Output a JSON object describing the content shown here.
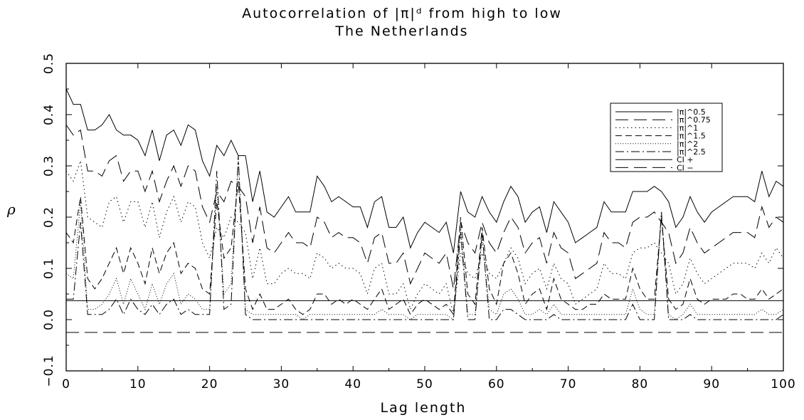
{
  "chart_data": {
    "type": "line",
    "title_line1": "Autocorrelation of |π|ᵈ from high to low",
    "title_line2": "The Netherlands",
    "xlabel": "Lag length",
    "ylabel": "ρ",
    "xlim": [
      0,
      100
    ],
    "ylim": [
      -0.1,
      0.5
    ],
    "x_ticks": [
      "0",
      "10",
      "20",
      "30",
      "40",
      "50",
      "60",
      "70",
      "80",
      "90",
      "100"
    ],
    "y_ticks": [
      "−0.1",
      "0.0",
      "0.1",
      "0.2",
      "0.3",
      "0.4",
      "0.5"
    ],
    "legend_position": "top-right",
    "grid": false,
    "series": [
      {
        "name": "|π|^0.5",
        "dash": "solid",
        "x": [
          0,
          1,
          2,
          3,
          4,
          5,
          6,
          7,
          8,
          9,
          10,
          11,
          12,
          13,
          14,
          15,
          16,
          17,
          18,
          19,
          20,
          21,
          22,
          23,
          24,
          25,
          26,
          27,
          28,
          29,
          30,
          31,
          32,
          33,
          34,
          35,
          36,
          37,
          38,
          39,
          40,
          41,
          42,
          43,
          44,
          45,
          46,
          47,
          48,
          49,
          50,
          51,
          52,
          53,
          54,
          55,
          56,
          57,
          58,
          59,
          60,
          61,
          62,
          63,
          64,
          65,
          66,
          67,
          68,
          69,
          70,
          71,
          72,
          73,
          74,
          75,
          76,
          77,
          78,
          79,
          80,
          81,
          82,
          83,
          84,
          85,
          86,
          87,
          88,
          89,
          90,
          91,
          92,
          93,
          94,
          95,
          96,
          97,
          98,
          99,
          100
        ],
        "y": [
          0.45,
          0.42,
          0.42,
          0.37,
          0.37,
          0.38,
          0.4,
          0.37,
          0.36,
          0.36,
          0.35,
          0.32,
          0.37,
          0.31,
          0.36,
          0.37,
          0.34,
          0.38,
          0.37,
          0.31,
          0.28,
          0.34,
          0.32,
          0.35,
          0.32,
          0.32,
          0.23,
          0.29,
          0.21,
          0.2,
          0.22,
          0.24,
          0.21,
          0.21,
          0.21,
          0.28,
          0.26,
          0.23,
          0.24,
          0.23,
          0.22,
          0.22,
          0.18,
          0.23,
          0.24,
          0.18,
          0.18,
          0.2,
          0.14,
          0.17,
          0.19,
          0.18,
          0.17,
          0.19,
          0.13,
          0.25,
          0.21,
          0.2,
          0.24,
          0.21,
          0.19,
          0.23,
          0.26,
          0.24,
          0.19,
          0.21,
          0.22,
          0.17,
          0.23,
          0.21,
          0.19,
          0.15,
          0.16,
          0.17,
          0.18,
          0.23,
          0.21,
          0.21,
          0.21,
          0.25,
          0.25,
          0.25,
          0.26,
          0.25,
          0.23,
          0.18,
          0.2,
          0.24,
          0.21,
          0.19,
          0.21,
          0.22,
          0.23,
          0.24,
          0.24,
          0.24,
          0.23,
          0.29,
          0.24,
          0.27,
          0.26
        ]
      },
      {
        "name": "|π|^0.75",
        "dash": "long-dash",
        "x": [
          0,
          1,
          2,
          3,
          4,
          5,
          6,
          7,
          8,
          9,
          10,
          11,
          12,
          13,
          14,
          15,
          16,
          17,
          18,
          19,
          20,
          21,
          22,
          23,
          24,
          25,
          26,
          27,
          28,
          29,
          30,
          31,
          32,
          33,
          34,
          35,
          36,
          37,
          38,
          39,
          40,
          41,
          42,
          43,
          44,
          45,
          46,
          47,
          48,
          49,
          50,
          51,
          52,
          53,
          54,
          55,
          56,
          57,
          58,
          59,
          60,
          61,
          62,
          63,
          64,
          65,
          66,
          67,
          68,
          69,
          70,
          71,
          72,
          73,
          74,
          75,
          76,
          77,
          78,
          79,
          80,
          81,
          82,
          83,
          84,
          85,
          86,
          87,
          88,
          89,
          90,
          91,
          92,
          93,
          94,
          95,
          96,
          97,
          98,
          99,
          100
        ],
        "y": [
          0.38,
          0.36,
          0.37,
          0.29,
          0.29,
          0.28,
          0.31,
          0.32,
          0.27,
          0.29,
          0.29,
          0.25,
          0.29,
          0.23,
          0.27,
          0.3,
          0.26,
          0.3,
          0.29,
          0.22,
          0.19,
          0.25,
          0.23,
          0.27,
          0.26,
          0.24,
          0.15,
          0.22,
          0.14,
          0.13,
          0.15,
          0.17,
          0.15,
          0.15,
          0.14,
          0.2,
          0.19,
          0.16,
          0.17,
          0.16,
          0.16,
          0.15,
          0.11,
          0.16,
          0.17,
          0.11,
          0.11,
          0.13,
          0.07,
          0.1,
          0.13,
          0.12,
          0.11,
          0.13,
          0.06,
          0.19,
          0.15,
          0.13,
          0.19,
          0.15,
          0.13,
          0.17,
          0.2,
          0.18,
          0.13,
          0.15,
          0.16,
          0.11,
          0.17,
          0.14,
          0.13,
          0.08,
          0.09,
          0.1,
          0.11,
          0.17,
          0.15,
          0.15,
          0.14,
          0.19,
          0.2,
          0.2,
          0.21,
          0.19,
          0.17,
          0.11,
          0.13,
          0.18,
          0.15,
          0.13,
          0.14,
          0.15,
          0.16,
          0.17,
          0.17,
          0.17,
          0.16,
          0.22,
          0.18,
          0.2,
          0.19
        ]
      },
      {
        "name": "|π|^1",
        "dash": "dot",
        "x": [
          0,
          1,
          2,
          3,
          4,
          5,
          6,
          7,
          8,
          9,
          10,
          11,
          12,
          13,
          14,
          15,
          16,
          17,
          18,
          19,
          20,
          21,
          22,
          23,
          24,
          25,
          26,
          27,
          28,
          29,
          30,
          31,
          32,
          33,
          34,
          35,
          36,
          37,
          38,
          39,
          40,
          41,
          42,
          43,
          44,
          45,
          46,
          47,
          48,
          49,
          50,
          51,
          52,
          53,
          54,
          55,
          56,
          57,
          58,
          59,
          60,
          61,
          62,
          63,
          64,
          65,
          66,
          67,
          68,
          69,
          70,
          71,
          72,
          73,
          74,
          75,
          76,
          77,
          78,
          79,
          80,
          81,
          82,
          83,
          84,
          85,
          86,
          87,
          88,
          89,
          90,
          91,
          92,
          93,
          94,
          95,
          96,
          97,
          98,
          99,
          100
        ],
        "y": [
          0.29,
          0.27,
          0.31,
          0.2,
          0.19,
          0.18,
          0.23,
          0.24,
          0.19,
          0.23,
          0.23,
          0.18,
          0.23,
          0.16,
          0.21,
          0.24,
          0.19,
          0.23,
          0.22,
          0.15,
          0.12,
          0.18,
          0.16,
          0.2,
          0.19,
          0.17,
          0.08,
          0.14,
          0.07,
          0.07,
          0.09,
          0.1,
          0.09,
          0.09,
          0.08,
          0.13,
          0.12,
          0.1,
          0.11,
          0.1,
          0.1,
          0.09,
          0.05,
          0.1,
          0.11,
          0.05,
          0.05,
          0.07,
          0.02,
          0.05,
          0.07,
          0.06,
          0.05,
          0.07,
          0.01,
          0.13,
          0.09,
          0.08,
          0.13,
          0.09,
          0.08,
          0.11,
          0.14,
          0.12,
          0.07,
          0.09,
          0.1,
          0.06,
          0.11,
          0.08,
          0.07,
          0.03,
          0.04,
          0.05,
          0.06,
          0.11,
          0.09,
          0.09,
          0.08,
          0.13,
          0.14,
          0.14,
          0.15,
          0.13,
          0.11,
          0.05,
          0.07,
          0.12,
          0.09,
          0.07,
          0.08,
          0.09,
          0.1,
          0.11,
          0.11,
          0.11,
          0.1,
          0.13,
          0.11,
          0.14,
          0.12
        ]
      },
      {
        "name": "|π|^1.5",
        "dash": "dash",
        "x": [
          0,
          1,
          2,
          3,
          4,
          5,
          6,
          7,
          8,
          9,
          10,
          11,
          12,
          13,
          14,
          15,
          16,
          17,
          18,
          19,
          20,
          21,
          22,
          23,
          24,
          25,
          26,
          27,
          28,
          29,
          30,
          31,
          32,
          33,
          34,
          35,
          36,
          37,
          38,
          39,
          40,
          41,
          42,
          43,
          44,
          45,
          46,
          47,
          48,
          49,
          50,
          51,
          52,
          53,
          54,
          55,
          56,
          57,
          58,
          59,
          60,
          61,
          62,
          63,
          64,
          65,
          66,
          67,
          68,
          69,
          70,
          71,
          72,
          73,
          74,
          75,
          76,
          77,
          78,
          79,
          80,
          81,
          82,
          83,
          84,
          85,
          86,
          87,
          88,
          89,
          90,
          91,
          92,
          93,
          94,
          95,
          96,
          97,
          98,
          99,
          100
        ],
        "y": [
          0.17,
          0.15,
          0.24,
          0.08,
          0.06,
          0.08,
          0.11,
          0.14,
          0.09,
          0.14,
          0.11,
          0.07,
          0.14,
          0.09,
          0.13,
          0.15,
          0.09,
          0.11,
          0.1,
          0.06,
          0.05,
          0.23,
          0.12,
          0.14,
          0.27,
          0.06,
          0.02,
          0.05,
          0.02,
          0.02,
          0.03,
          0.04,
          0.02,
          0.01,
          0.02,
          0.05,
          0.05,
          0.03,
          0.04,
          0.03,
          0.04,
          0.03,
          0.02,
          0.04,
          0.06,
          0.02,
          0.03,
          0.04,
          0.01,
          0.03,
          0.04,
          0.03,
          0.02,
          0.03,
          0.01,
          0.2,
          0.05,
          0.03,
          0.18,
          0.06,
          0.03,
          0.11,
          0.13,
          0.09,
          0.03,
          0.05,
          0.06,
          0.02,
          0.08,
          0.04,
          0.03,
          0.02,
          0.02,
          0.03,
          0.03,
          0.05,
          0.04,
          0.04,
          0.04,
          0.1,
          0.06,
          0.04,
          0.04,
          0.2,
          0.04,
          0.02,
          0.03,
          0.08,
          0.04,
          0.03,
          0.04,
          0.04,
          0.04,
          0.05,
          0.05,
          0.04,
          0.04,
          0.06,
          0.04,
          0.05,
          0.06
        ]
      },
      {
        "name": "|π|^2",
        "dash": "fine-dot",
        "x": [
          0,
          1,
          2,
          3,
          4,
          5,
          6,
          7,
          8,
          9,
          10,
          11,
          12,
          13,
          14,
          15,
          16,
          17,
          18,
          19,
          20,
          21,
          22,
          23,
          24,
          25,
          26,
          27,
          28,
          29,
          30,
          31,
          32,
          33,
          34,
          35,
          36,
          37,
          38,
          39,
          40,
          41,
          42,
          43,
          44,
          45,
          46,
          47,
          48,
          49,
          50,
          51,
          52,
          53,
          54,
          55,
          56,
          57,
          58,
          59,
          60,
          61,
          62,
          63,
          64,
          65,
          66,
          67,
          68,
          69,
          70,
          71,
          72,
          73,
          74,
          75,
          76,
          77,
          78,
          79,
          80,
          81,
          82,
          83,
          84,
          85,
          86,
          87,
          88,
          89,
          90,
          91,
          92,
          93,
          94,
          95,
          96,
          97,
          98,
          99,
          100
        ],
        "y": [
          0.09,
          0.08,
          0.23,
          0.02,
          0.02,
          0.03,
          0.05,
          0.08,
          0.03,
          0.08,
          0.05,
          0.02,
          0.07,
          0.03,
          0.07,
          0.09,
          0.03,
          0.05,
          0.04,
          0.02,
          0.02,
          0.26,
          0.05,
          0.07,
          0.31,
          0.02,
          0.01,
          0.01,
          0.01,
          0.01,
          0.01,
          0.01,
          0.01,
          0.0,
          0.01,
          0.01,
          0.01,
          0.01,
          0.01,
          0.01,
          0.01,
          0.01,
          0.01,
          0.01,
          0.02,
          0.01,
          0.01,
          0.01,
          0.0,
          0.01,
          0.01,
          0.01,
          0.01,
          0.01,
          0.0,
          0.18,
          0.01,
          0.01,
          0.16,
          0.02,
          0.01,
          0.05,
          0.06,
          0.04,
          0.01,
          0.01,
          0.02,
          0.01,
          0.03,
          0.01,
          0.01,
          0.01,
          0.01,
          0.01,
          0.01,
          0.01,
          0.01,
          0.01,
          0.01,
          0.06,
          0.02,
          0.01,
          0.01,
          0.21,
          0.01,
          0.0,
          0.01,
          0.03,
          0.01,
          0.01,
          0.01,
          0.01,
          0.01,
          0.01,
          0.01,
          0.01,
          0.01,
          0.02,
          0.01,
          0.01,
          0.02
        ]
      },
      {
        "name": "|π|^2.5",
        "dash": "dash-dot",
        "x": [
          0,
          1,
          2,
          3,
          4,
          5,
          6,
          7,
          8,
          9,
          10,
          11,
          12,
          13,
          14,
          15,
          16,
          17,
          18,
          19,
          20,
          21,
          22,
          23,
          24,
          25,
          26,
          27,
          28,
          29,
          30,
          31,
          32,
          33,
          34,
          35,
          36,
          37,
          38,
          39,
          40,
          41,
          42,
          43,
          44,
          45,
          46,
          47,
          48,
          49,
          50,
          51,
          52,
          53,
          54,
          55,
          56,
          57,
          58,
          59,
          60,
          61,
          62,
          63,
          64,
          65,
          66,
          67,
          68,
          69,
          70,
          71,
          72,
          73,
          74,
          75,
          76,
          77,
          78,
          79,
          80,
          81,
          82,
          83,
          84,
          85,
          86,
          87,
          88,
          89,
          90,
          91,
          92,
          93,
          94,
          95,
          96,
          97,
          98,
          99,
          100
        ],
        "y": [
          0.04,
          0.04,
          0.19,
          0.01,
          0.01,
          0.01,
          0.02,
          0.04,
          0.01,
          0.04,
          0.02,
          0.01,
          0.03,
          0.01,
          0.03,
          0.04,
          0.01,
          0.02,
          0.01,
          0.01,
          0.01,
          0.29,
          0.02,
          0.03,
          0.32,
          0.01,
          0.0,
          0.0,
          0.0,
          0.0,
          0.0,
          0.0,
          0.0,
          0.0,
          0.0,
          0.0,
          0.0,
          0.0,
          0.0,
          0.0,
          0.0,
          0.0,
          0.0,
          0.0,
          0.0,
          0.0,
          0.0,
          0.0,
          0.0,
          0.0,
          0.0,
          0.0,
          0.0,
          0.0,
          0.0,
          0.17,
          0.0,
          0.0,
          0.17,
          0.0,
          0.0,
          0.02,
          0.02,
          0.01,
          0.0,
          0.0,
          0.0,
          0.0,
          0.01,
          0.0,
          0.0,
          0.0,
          0.0,
          0.0,
          0.0,
          0.0,
          0.0,
          0.0,
          0.0,
          0.03,
          0.0,
          0.0,
          0.0,
          0.21,
          0.0,
          0.0,
          0.0,
          0.01,
          0.0,
          0.0,
          0.0,
          0.0,
          0.0,
          0.0,
          0.0,
          0.0,
          0.0,
          0.0,
          0.0,
          0.0,
          0.01
        ]
      },
      {
        "name": "CI +",
        "dash": "solid",
        "x": [
          0,
          100
        ],
        "y": [
          0.037,
          0.037
        ]
      },
      {
        "name": "CI −",
        "dash": "long-dash",
        "x": [
          0,
          100
        ],
        "y": [
          -0.025,
          -0.025
        ]
      }
    ]
  }
}
